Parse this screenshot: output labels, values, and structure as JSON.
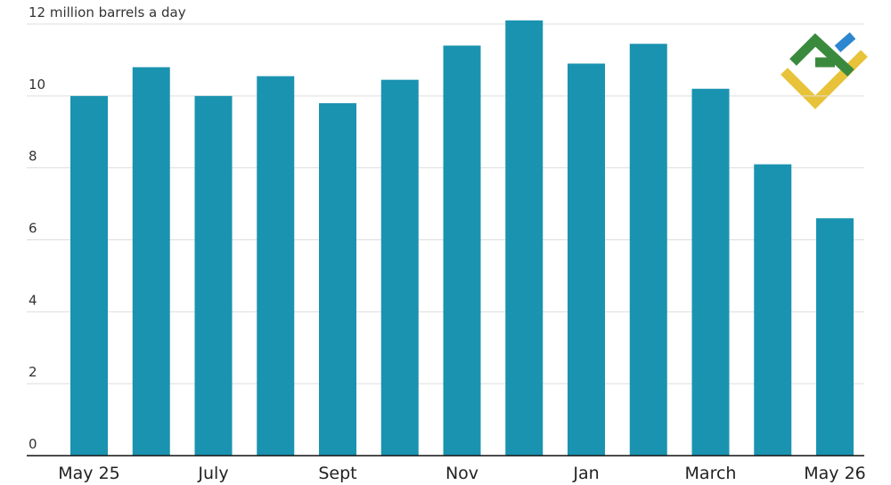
{
  "chart_data": {
    "type": "bar",
    "categories": [
      "May 25",
      null,
      "July",
      null,
      "Sept",
      null,
      "Nov",
      null,
      "Jan",
      null,
      "March",
      null,
      "May 26"
    ],
    "values": [
      10.0,
      10.8,
      10.0,
      10.55,
      9.8,
      10.45,
      11.4,
      12.1,
      10.9,
      11.45,
      10.2,
      8.1,
      6.6
    ],
    "color": "#1a93b0",
    "ylim": [
      0,
      12.1
    ],
    "yticks": [
      0,
      2,
      4,
      6,
      8,
      10,
      {
        "value": 12,
        "label": "12 million barrels a day"
      }
    ],
    "grid": true
  }
}
